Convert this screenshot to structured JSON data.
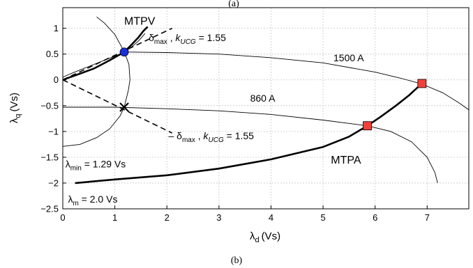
{
  "chart_data": {
    "type": "line",
    "top_caption": "(a)",
    "caption": "(b)",
    "xlabel_main": "λ",
    "xlabel_sub": "d",
    "xlabel_unit": "(Vs)",
    "ylabel_main": "λ",
    "ylabel_sub": "q",
    "ylabel_unit": "(Vs)",
    "xlim": [
      0,
      7.8
    ],
    "ylim": [
      -2.5,
      1.4
    ],
    "xticks": [
      0,
      1,
      2,
      3,
      4,
      5,
      6,
      7
    ],
    "yticks": [
      -2.5,
      -2,
      -1.5,
      -1,
      -0.5,
      0,
      0.5,
      1
    ],
    "xtick_labels": [
      "0",
      "1",
      "2",
      "3",
      "4",
      "5",
      "6",
      "7"
    ],
    "ytick_labels": [
      "−2.5",
      "−2",
      "−1.5",
      "−1",
      "−0.5",
      "0",
      "0.5",
      "1"
    ],
    "grid": true,
    "series": [
      {
        "style": "thin",
        "points": [
          [
            0,
            0.05
          ],
          [
            0.15,
            0.12
          ],
          [
            0.35,
            0.2
          ],
          [
            0.6,
            0.3
          ],
          [
            0.85,
            0.4
          ],
          [
            1.0,
            0.46
          ],
          [
            1.16,
            0.52
          ],
          [
            1.3,
            0.62
          ],
          [
            1.45,
            0.75
          ],
          [
            1.58,
            0.9
          ]
        ]
      },
      {
        "style": "thin",
        "points": [
          [
            1.18,
            0.54
          ],
          [
            2,
            0.53
          ],
          [
            3,
            0.5
          ],
          [
            4,
            0.43
          ],
          [
            5,
            0.33
          ],
          [
            6,
            0.15
          ],
          [
            6.5,
            0.03
          ],
          [
            6.9,
            -0.08
          ],
          [
            7.3,
            -0.25
          ],
          [
            7.6,
            -0.44
          ],
          [
            7.8,
            -0.58
          ]
        ]
      },
      {
        "style": "thin",
        "points": [
          [
            0,
            -0.53
          ],
          [
            1,
            -0.53
          ],
          [
            2,
            -0.56
          ],
          [
            3,
            -0.6
          ],
          [
            4,
            -0.67
          ],
          [
            5,
            -0.78
          ],
          [
            5.85,
            -0.89
          ],
          [
            6.3,
            -1.0
          ],
          [
            6.7,
            -1.2
          ],
          [
            7.0,
            -1.5
          ],
          [
            7.15,
            -1.8
          ],
          [
            7.2,
            -2.0
          ]
        ]
      },
      {
        "style": "thin",
        "points": [
          [
            0,
            -1.29
          ],
          [
            0.33,
            -1.25
          ],
          [
            0.65,
            -1.12
          ],
          [
            0.9,
            -0.95
          ],
          [
            1.1,
            -0.7
          ],
          [
            1.18,
            -0.53
          ],
          [
            1.26,
            -0.2
          ],
          [
            1.29,
            0
          ],
          [
            1.27,
            0.3
          ],
          [
            1.18,
            0.55
          ],
          [
            1.0,
            0.88
          ],
          [
            0.8,
            1.1
          ],
          [
            0.65,
            1.22
          ]
        ]
      },
      {
        "style": "thick",
        "points": [
          [
            0,
            0
          ],
          [
            0.3,
            0.11
          ],
          [
            0.6,
            0.22
          ],
          [
            0.9,
            0.38
          ],
          [
            1.18,
            0.54
          ],
          [
            1.3,
            0.66
          ],
          [
            1.45,
            0.82
          ],
          [
            1.55,
            0.95
          ],
          [
            1.62,
            1.02
          ]
        ]
      },
      {
        "style": "thick",
        "points": [
          [
            0.25,
            -2.0
          ],
          [
            1,
            -1.93
          ],
          [
            2,
            -1.85
          ],
          [
            3,
            -1.72
          ],
          [
            4,
            -1.54
          ],
          [
            5,
            -1.3
          ],
          [
            5.5,
            -1.1
          ],
          [
            5.85,
            -0.89
          ],
          [
            6.1,
            -0.72
          ],
          [
            6.4,
            -0.5
          ],
          [
            6.65,
            -0.3
          ],
          [
            6.9,
            -0.07
          ]
        ]
      },
      {
        "style": "dashed",
        "points": [
          [
            0,
            0
          ],
          [
            2.1,
            1.0
          ]
        ]
      },
      {
        "style": "dashed",
        "points": [
          [
            0,
            0
          ],
          [
            2.1,
            -1.03
          ]
        ]
      }
    ],
    "markers": [
      {
        "kind": "circle",
        "x": 1.18,
        "y": 0.54,
        "color": "#1a2fd6"
      },
      {
        "kind": "square",
        "x": 5.85,
        "y": -0.89,
        "color": "#f0413c"
      },
      {
        "kind": "square",
        "x": 6.9,
        "y": -0.07,
        "color": "#f0413c"
      },
      {
        "kind": "cross",
        "x": 1.18,
        "y": -0.53,
        "color": "#000000"
      }
    ],
    "annotations": [
      {
        "id": "mtpv",
        "x": 1.18,
        "y": 1.07,
        "parts": [
          {
            "t": "MTPV"
          }
        ]
      },
      {
        "id": "delta-pos",
        "x": 1.65,
        "y": 0.75,
        "parts": [
          {
            "t": "δ"
          },
          {
            "t": "max",
            "sub": true
          },
          {
            "t": " , "
          },
          {
            "t": "k",
            "it": true
          },
          {
            "t": "UCG",
            "sub": true,
            "it": true
          },
          {
            "t": " = 1.55"
          }
        ]
      },
      {
        "id": "1500a",
        "x": 5.2,
        "y": 0.36,
        "parts": [
          {
            "t": "1500 A"
          }
        ]
      },
      {
        "id": "860a",
        "x": 3.6,
        "y": -0.42,
        "parts": [
          {
            "t": "860 A"
          }
        ]
      },
      {
        "id": "delta-neg",
        "x": 2.03,
        "y": -1.15,
        "parts": [
          {
            "t": "– δ"
          },
          {
            "t": "max",
            "sub": true
          },
          {
            "t": " , "
          },
          {
            "t": "k",
            "it": true
          },
          {
            "t": "UCG",
            "sub": true,
            "it": true
          },
          {
            "t": " = 1.55"
          }
        ]
      },
      {
        "id": "lambda-min",
        "x": 0.05,
        "y": -1.7,
        "parts": [
          {
            "t": "λ"
          },
          {
            "t": "min",
            "sub": true
          },
          {
            "t": " = 1.29 Vs"
          }
        ]
      },
      {
        "id": "mtpa",
        "x": 5.15,
        "y": -1.62,
        "parts": [
          {
            "t": "MTPA"
          }
        ]
      },
      {
        "id": "lambda-m",
        "x": 0.1,
        "y": -2.38,
        "parts": [
          {
            "t": "λ"
          },
          {
            "t": "m",
            "sub": true
          },
          {
            "t": " = 2.0 Vs"
          }
        ]
      }
    ],
    "colors": {
      "circle": "#1a2fd6",
      "square": "#f0413c",
      "grid": "#c8c8c8"
    }
  }
}
